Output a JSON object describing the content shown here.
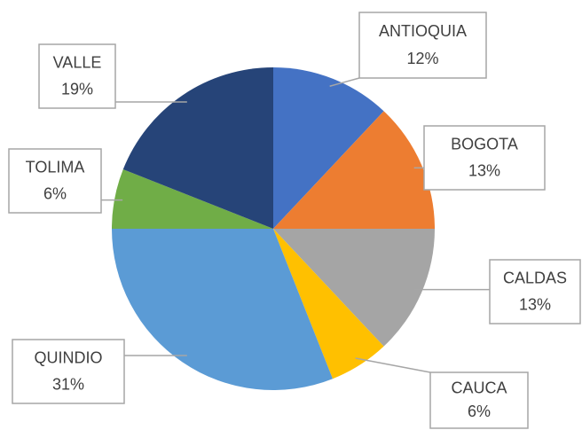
{
  "chart_data": {
    "type": "pie",
    "categories": [
      "ANTIOQUIA",
      "BOGOTA",
      "CALDAS",
      "CAUCA",
      "QUINDIO",
      "TOLIMA",
      "VALLE"
    ],
    "values": [
      12,
      13,
      13,
      6,
      31,
      6,
      19
    ],
    "value_labels": [
      "12%",
      "13%",
      "13%",
      "6%",
      "31%",
      "6%",
      "19%"
    ],
    "colors": [
      "#4472c4",
      "#ed7d31",
      "#a5a5a5",
      "#ffc000",
      "#5b9bd5",
      "#70ad47",
      "#264478"
    ]
  }
}
